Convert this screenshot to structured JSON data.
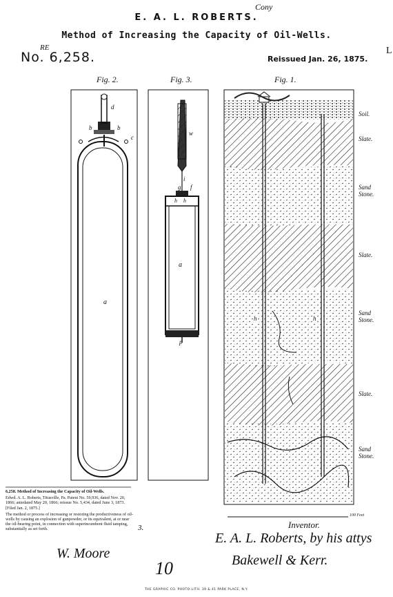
{
  "header": {
    "title": "E. A. L. ROBERTS.",
    "subtitle": "Method of Increasing the Capacity of Oil-Wells.",
    "patent_number": "No. 6,258.",
    "re_mark": "RE",
    "reissued": "Reissued Jan. 26, 1875.",
    "corner_note": "Cony",
    "corner_mark": "L"
  },
  "figures": {
    "fig2": {
      "label": "Fig. 2.",
      "refs": [
        "d",
        "b",
        "b",
        "c",
        "a"
      ]
    },
    "fig3": {
      "label": "Fig. 3.",
      "refs": [
        "w",
        "i",
        "g",
        "f",
        "h",
        "h",
        "a",
        "p"
      ]
    },
    "fig1": {
      "label": "Fig. 1.",
      "refs": [
        "h",
        "h"
      ]
    }
  },
  "strata": [
    {
      "label": "Soil."
    },
    {
      "label": "Slate."
    },
    {
      "label": "Sand Stone."
    },
    {
      "label": "Slate."
    },
    {
      "label": "Sand Stone."
    },
    {
      "label": "Slate."
    },
    {
      "label": "Sand Stone."
    }
  ],
  "scale_note": "100 Feet",
  "abstract": {
    "heading": "6,258. Method of Increasing the Capacity of Oil-Wells.",
    "line1": "Edwd. A. L. Roberts, Titusville, Pa. Patent No. 59,936, dated Nov. 20, 1866; antedated May 20, 1866; reissue No. 5,434, dated June 3, 1873. [Filed Jan. 2, 1875.]",
    "body": "The method or process of increasing or restoring the productiveness of oil-wells by causing an explosion of gunpowder, or its equivalent, at or near the oil-bearing point, in connection with superincumbent fluid tamping, substantially as set forth."
  },
  "witness": {
    "signature": "W. Moore",
    "mark": "3."
  },
  "inventor": {
    "label": "Inventor.",
    "signature": "E. A. L. Roberts, by his attys",
    "attorneys": "Bakewell & Kerr."
  },
  "handwritten_number": "10",
  "footer": "THE GRAPHIC CO. PHOTO-LITH. 39 & 41 PARK PLACE, N.Y."
}
